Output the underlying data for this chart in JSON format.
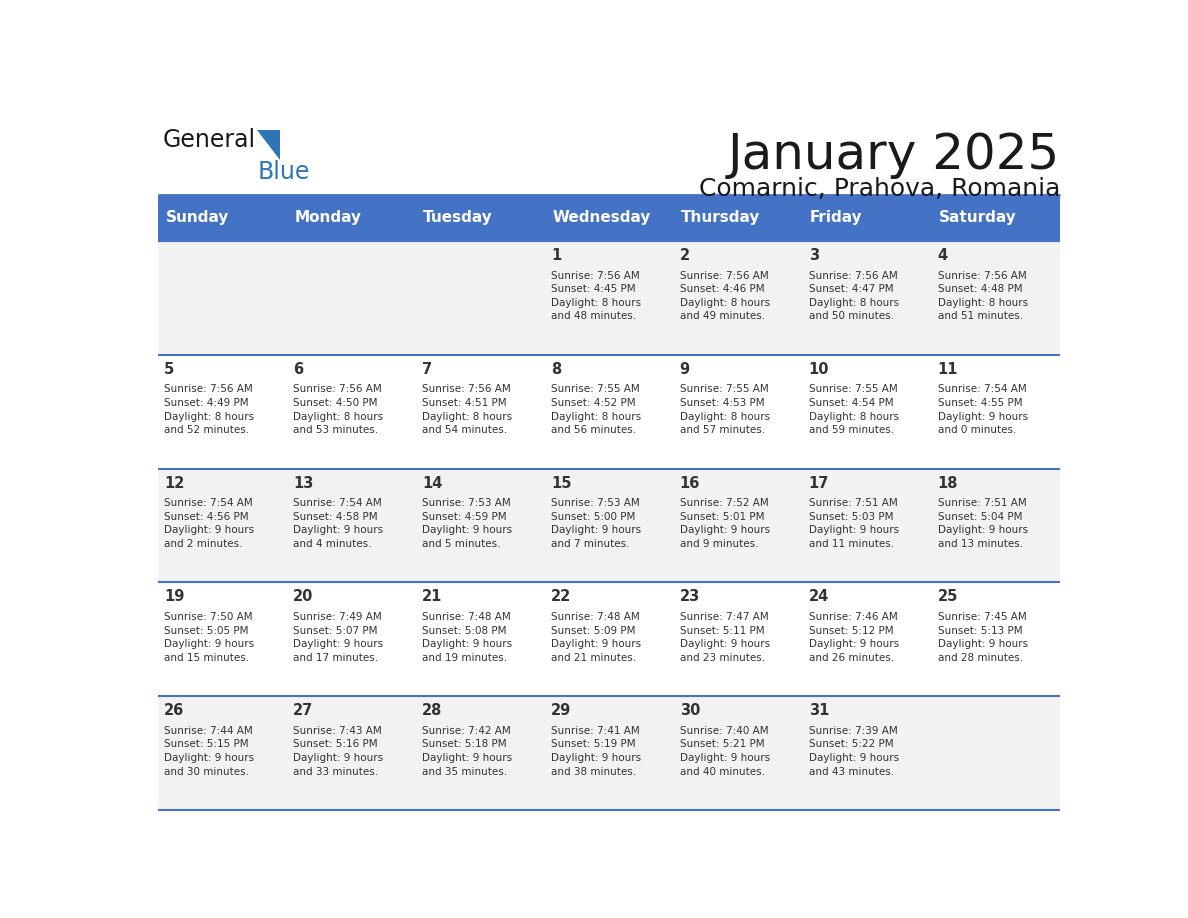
{
  "title": "January 2025",
  "subtitle": "Comarnic, Prahova, Romania",
  "days_of_week": [
    "Sunday",
    "Monday",
    "Tuesday",
    "Wednesday",
    "Thursday",
    "Friday",
    "Saturday"
  ],
  "header_bg": "#4472C4",
  "header_text_color": "#FFFFFF",
  "cell_bg_odd": "#F2F2F2",
  "cell_bg_even": "#FFFFFF",
  "cell_border_color": "#4472C4",
  "day_num_color": "#333333",
  "day_text_color": "#333333",
  "logo_general_color": "#1a1a1a",
  "logo_blue_color": "#2E75B6",
  "calendar": [
    [
      {
        "day": null,
        "text": ""
      },
      {
        "day": null,
        "text": ""
      },
      {
        "day": null,
        "text": ""
      },
      {
        "day": 1,
        "text": "Sunrise: 7:56 AM\nSunset: 4:45 PM\nDaylight: 8 hours\nand 48 minutes."
      },
      {
        "day": 2,
        "text": "Sunrise: 7:56 AM\nSunset: 4:46 PM\nDaylight: 8 hours\nand 49 minutes."
      },
      {
        "day": 3,
        "text": "Sunrise: 7:56 AM\nSunset: 4:47 PM\nDaylight: 8 hours\nand 50 minutes."
      },
      {
        "day": 4,
        "text": "Sunrise: 7:56 AM\nSunset: 4:48 PM\nDaylight: 8 hours\nand 51 minutes."
      }
    ],
    [
      {
        "day": 5,
        "text": "Sunrise: 7:56 AM\nSunset: 4:49 PM\nDaylight: 8 hours\nand 52 minutes."
      },
      {
        "day": 6,
        "text": "Sunrise: 7:56 AM\nSunset: 4:50 PM\nDaylight: 8 hours\nand 53 minutes."
      },
      {
        "day": 7,
        "text": "Sunrise: 7:56 AM\nSunset: 4:51 PM\nDaylight: 8 hours\nand 54 minutes."
      },
      {
        "day": 8,
        "text": "Sunrise: 7:55 AM\nSunset: 4:52 PM\nDaylight: 8 hours\nand 56 minutes."
      },
      {
        "day": 9,
        "text": "Sunrise: 7:55 AM\nSunset: 4:53 PM\nDaylight: 8 hours\nand 57 minutes."
      },
      {
        "day": 10,
        "text": "Sunrise: 7:55 AM\nSunset: 4:54 PM\nDaylight: 8 hours\nand 59 minutes."
      },
      {
        "day": 11,
        "text": "Sunrise: 7:54 AM\nSunset: 4:55 PM\nDaylight: 9 hours\nand 0 minutes."
      }
    ],
    [
      {
        "day": 12,
        "text": "Sunrise: 7:54 AM\nSunset: 4:56 PM\nDaylight: 9 hours\nand 2 minutes."
      },
      {
        "day": 13,
        "text": "Sunrise: 7:54 AM\nSunset: 4:58 PM\nDaylight: 9 hours\nand 4 minutes."
      },
      {
        "day": 14,
        "text": "Sunrise: 7:53 AM\nSunset: 4:59 PM\nDaylight: 9 hours\nand 5 minutes."
      },
      {
        "day": 15,
        "text": "Sunrise: 7:53 AM\nSunset: 5:00 PM\nDaylight: 9 hours\nand 7 minutes."
      },
      {
        "day": 16,
        "text": "Sunrise: 7:52 AM\nSunset: 5:01 PM\nDaylight: 9 hours\nand 9 minutes."
      },
      {
        "day": 17,
        "text": "Sunrise: 7:51 AM\nSunset: 5:03 PM\nDaylight: 9 hours\nand 11 minutes."
      },
      {
        "day": 18,
        "text": "Sunrise: 7:51 AM\nSunset: 5:04 PM\nDaylight: 9 hours\nand 13 minutes."
      }
    ],
    [
      {
        "day": 19,
        "text": "Sunrise: 7:50 AM\nSunset: 5:05 PM\nDaylight: 9 hours\nand 15 minutes."
      },
      {
        "day": 20,
        "text": "Sunrise: 7:49 AM\nSunset: 5:07 PM\nDaylight: 9 hours\nand 17 minutes."
      },
      {
        "day": 21,
        "text": "Sunrise: 7:48 AM\nSunset: 5:08 PM\nDaylight: 9 hours\nand 19 minutes."
      },
      {
        "day": 22,
        "text": "Sunrise: 7:48 AM\nSunset: 5:09 PM\nDaylight: 9 hours\nand 21 minutes."
      },
      {
        "day": 23,
        "text": "Sunrise: 7:47 AM\nSunset: 5:11 PM\nDaylight: 9 hours\nand 23 minutes."
      },
      {
        "day": 24,
        "text": "Sunrise: 7:46 AM\nSunset: 5:12 PM\nDaylight: 9 hours\nand 26 minutes."
      },
      {
        "day": 25,
        "text": "Sunrise: 7:45 AM\nSunset: 5:13 PM\nDaylight: 9 hours\nand 28 minutes."
      }
    ],
    [
      {
        "day": 26,
        "text": "Sunrise: 7:44 AM\nSunset: 5:15 PM\nDaylight: 9 hours\nand 30 minutes."
      },
      {
        "day": 27,
        "text": "Sunrise: 7:43 AM\nSunset: 5:16 PM\nDaylight: 9 hours\nand 33 minutes."
      },
      {
        "day": 28,
        "text": "Sunrise: 7:42 AM\nSunset: 5:18 PM\nDaylight: 9 hours\nand 35 minutes."
      },
      {
        "day": 29,
        "text": "Sunrise: 7:41 AM\nSunset: 5:19 PM\nDaylight: 9 hours\nand 38 minutes."
      },
      {
        "day": 30,
        "text": "Sunrise: 7:40 AM\nSunset: 5:21 PM\nDaylight: 9 hours\nand 40 minutes."
      },
      {
        "day": 31,
        "text": "Sunrise: 7:39 AM\nSunset: 5:22 PM\nDaylight: 9 hours\nand 43 minutes."
      },
      {
        "day": null,
        "text": ""
      }
    ]
  ]
}
